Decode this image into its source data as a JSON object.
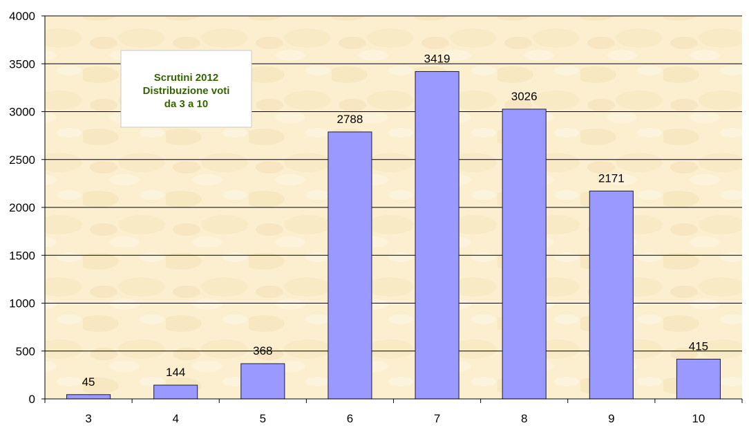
{
  "chart_data": {
    "type": "bar",
    "title_lines": [
      "Scrutini 2012",
      "Distribuzione voti",
      "da 3 a 10"
    ],
    "categories": [
      "3",
      "4",
      "5",
      "6",
      "7",
      "8",
      "9",
      "10"
    ],
    "values": [
      45,
      144,
      368,
      2788,
      3419,
      3026,
      2171,
      415
    ],
    "xlabel": "",
    "ylabel": "",
    "ylim": [
      0,
      4000
    ],
    "yticks": [
      0,
      500,
      1000,
      1500,
      2000,
      2500,
      3000,
      3500,
      4000
    ],
    "grid": true,
    "data_labels": true,
    "title_placement": "top-left inside plot area",
    "colors": {
      "bar_fill": "#9999ff",
      "bar_stroke": "#1a1a40",
      "plot_bg": "#fbefcf",
      "grid": "#000000",
      "title_text": "#336600"
    }
  }
}
